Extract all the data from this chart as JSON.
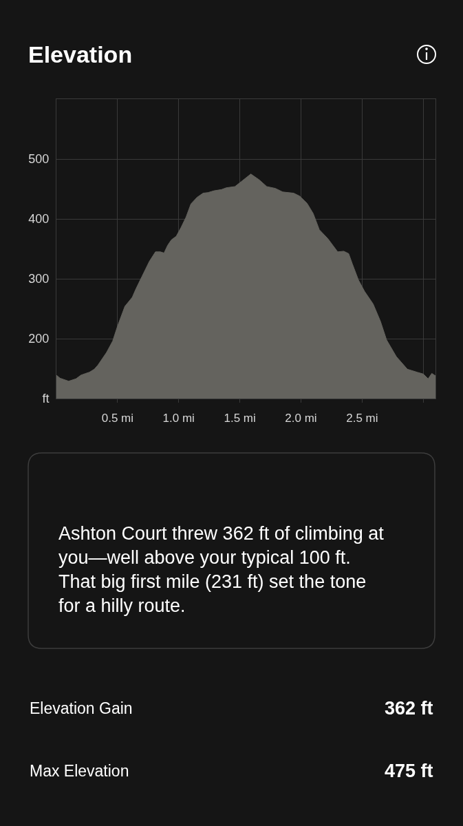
{
  "chart_data": {
    "type": "area",
    "title": "Elevation",
    "x": [
      0,
      0.03,
      0.1,
      0.16,
      0.2,
      0.24,
      0.27,
      0.31,
      0.34,
      0.41,
      0.46,
      0.5,
      0.56,
      0.62,
      0.65,
      0.7,
      0.76,
      0.81,
      0.85,
      0.88,
      0.91,
      0.94,
      0.98,
      1.02,
      1.06,
      1.1,
      1.15,
      1.2,
      1.24,
      1.29,
      1.35,
      1.39,
      1.46,
      1.51,
      1.59,
      1.66,
      1.72,
      1.79,
      1.85,
      1.94,
      1.99,
      2.05,
      2.1,
      2.15,
      2.22,
      2.26,
      2.3,
      2.35,
      2.39,
      2.42,
      2.47,
      2.52,
      2.59,
      2.65,
      2.7,
      2.78,
      2.87,
      2.95,
      3.0,
      3.04,
      3.07,
      3.1
    ],
    "values": [
      139,
      134,
      129,
      133,
      139,
      142,
      144,
      149,
      156,
      177,
      196,
      221,
      254,
      269,
      283,
      304,
      329,
      345,
      345,
      343,
      356,
      365,
      371,
      386,
      403,
      425,
      436,
      443,
      444,
      447,
      449,
      452,
      454,
      462,
      475,
      465,
      454,
      451,
      445,
      443,
      438,
      426,
      409,
      382,
      367,
      356,
      345,
      346,
      342,
      325,
      298,
      279,
      258,
      229,
      198,
      170,
      149,
      144,
      141,
      133,
      142,
      138
    ],
    "color": "#64635e",
    "xlim": [
      0,
      3.1
    ],
    "xticks": [
      {
        "value": 0.5,
        "label": "0.5 mi"
      },
      {
        "value": 1,
        "label": "1.0 mi"
      },
      {
        "value": 1.5,
        "label": "1.5 mi"
      },
      {
        "value": 2,
        "label": "2.0 mi"
      },
      {
        "value": 2.5,
        "label": "2.5 mi"
      },
      {
        "value": 3,
        "label": null
      }
    ],
    "ylim": [
      100,
      600
    ],
    "yticks": [
      {
        "value": 100,
        "label": "ft"
      },
      200,
      300,
      400,
      500,
      {
        "value": 600,
        "label": null
      }
    ],
    "grid": true,
    "annotations": [
      "Ashton Court threw 362 ft of climbing at\nyou—well above your typical 100 ft.\nThat big first mile (231 ft) set the tone\nfor a hilly route.",
      "Elevation Gain",
      "362 ft",
      "Max Elevation",
      "475 ft"
    ]
  }
}
